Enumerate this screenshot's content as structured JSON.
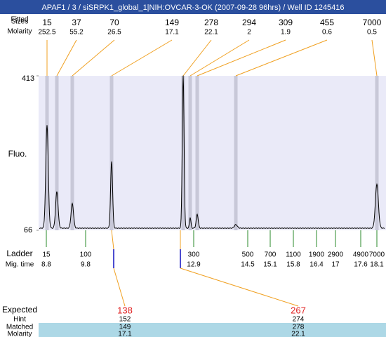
{
  "chart_data": {
    "type": "electropherogram",
    "title": "APAF1 / 3 / siSRPK1_global_1|NIH:OVCAR-3-OK (2007-09-28 96hrs) / Well ID 1245416",
    "header_labels": [
      "Fitted",
      "Sizes",
      "Molarity"
    ],
    "peaks": {
      "sizes": [
        15,
        37,
        70,
        149,
        278,
        294,
        309,
        455,
        7000
      ],
      "molarities": [
        252.5,
        55.2,
        26.5,
        17.1,
        22.1,
        2,
        1.9,
        0.6,
        0.5
      ]
    },
    "y_label": "Fluo.",
    "ylim": [
      66,
      413
    ],
    "yticks": [
      413,
      66
    ],
    "ladder": {
      "label": "Ladder",
      "time_label": "Mig. time",
      "sizes": [
        15,
        100,
        300,
        500,
        700,
        1100,
        1900,
        2900,
        4900,
        7000
      ],
      "times": [
        8.8,
        9.8,
        12.9,
        14.5,
        15.1,
        15.8,
        16.4,
        17,
        17.6,
        18.1
      ]
    },
    "expected": {
      "labels": [
        "Expected",
        "Hint",
        "Matched",
        "Molarity"
      ],
      "expected": [
        138,
        267
      ],
      "hint": [
        152,
        274
      ],
      "matched": [
        149,
        278
      ],
      "molarity": [
        17.1,
        22.1
      ]
    }
  }
}
